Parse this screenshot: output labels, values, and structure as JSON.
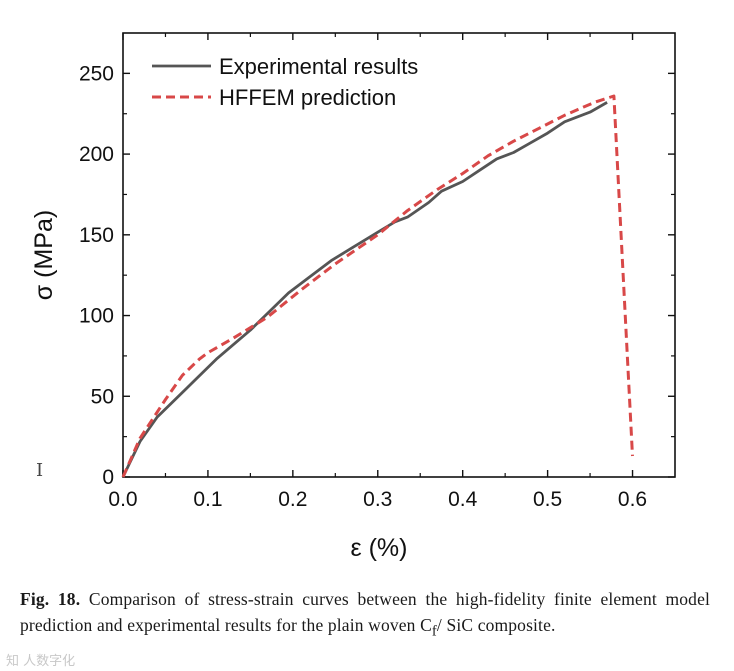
{
  "chart_data": {
    "type": "line",
    "xlabel": "ε (%)",
    "ylabel": "σ (MPa)",
    "xlim": [
      0.0,
      0.65
    ],
    "ylim": [
      0,
      275
    ],
    "xticks": [
      "0.0",
      "0.1",
      "0.2",
      "0.3",
      "0.4",
      "0.5",
      "0.6"
    ],
    "yticks": [
      "0",
      "50",
      "100",
      "150",
      "200",
      "250"
    ],
    "grid": false,
    "legend_position": "top-left",
    "series": [
      {
        "name": "Experimental results",
        "color": "#555555",
        "style": "solid",
        "x": [
          0.0,
          0.02,
          0.04,
          0.075,
          0.11,
          0.15,
          0.195,
          0.215,
          0.245,
          0.27,
          0.295,
          0.32,
          0.335,
          0.36,
          0.375,
          0.4,
          0.42,
          0.44,
          0.46,
          0.48,
          0.5,
          0.52,
          0.55,
          0.57
        ],
        "y": [
          0,
          22,
          37,
          55,
          73,
          91,
          114,
          122,
          134,
          142,
          150,
          158,
          161,
          170,
          177,
          183,
          190,
          197,
          201,
          207,
          213,
          220,
          226,
          232
        ]
      },
      {
        "name": "HFFEM prediction",
        "color": "#d84848",
        "style": "dashed",
        "x": [
          0.0,
          0.02,
          0.05,
          0.07,
          0.09,
          0.1,
          0.13,
          0.17,
          0.21,
          0.25,
          0.3,
          0.335,
          0.37,
          0.4,
          0.43,
          0.46,
          0.49,
          0.52,
          0.555,
          0.578,
          0.6
        ],
        "y": [
          0,
          24,
          48,
          63,
          73,
          77,
          86,
          99,
          116,
          132,
          150,
          165,
          178,
          188,
          199,
          208,
          216,
          224,
          232,
          236,
          13
        ]
      }
    ]
  },
  "caption": {
    "label": "Fig. 18.",
    "text_before_sub": " Comparison of stress-strain curves between the high-fidelity finite element model prediction and experimental results for the plain woven C",
    "subscript": "f",
    "text_after_sub": "/ SiC composite."
  },
  "cursor_symbol": "I",
  "watermark": "知 人数字化"
}
